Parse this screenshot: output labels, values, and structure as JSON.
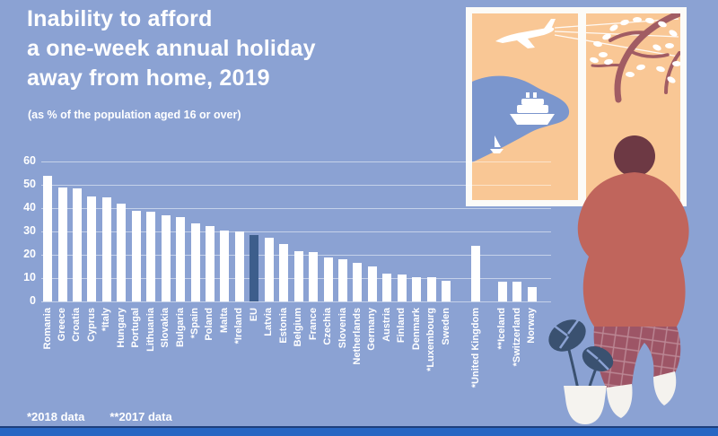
{
  "title": {
    "line1": "Inability to afford",
    "line2": "a one-week annual holiday",
    "line3": "away from home, 2019",
    "subtitle": "(as % of the population aged 16 or over)"
  },
  "footnote": {
    "note1": "*2018 data",
    "note2": "**2017 data"
  },
  "chart_data": {
    "type": "bar",
    "title": "Inability to afford a one-week annual holiday away from home, 2019",
    "ylabel": "% of the population aged 16 or over",
    "ylim": [
      0,
      60
    ],
    "yticks": [
      0,
      10,
      20,
      30,
      40,
      50,
      60
    ],
    "grid": true,
    "legend_position": "none",
    "categories": [
      "Romania",
      "Greece",
      "Croatia",
      "Cyprus",
      "*Italy",
      "Hungary",
      "Portugal",
      "Lithuania",
      "Slovakia",
      "Bulgaria",
      "*Spain",
      "Poland",
      "Malta",
      "*Ireland",
      "EU",
      "Latvia",
      "Estonia",
      "Belgium",
      "France",
      "Czechia",
      "Slovenia",
      "Netherlands",
      "Germany",
      "Austria",
      "Finland",
      "Denmark",
      "*Luxembourg",
      "Sweden",
      "*United Kingdom",
      "**Iceland",
      "*Switzerland",
      "Norway"
    ],
    "values": [
      54,
      49,
      48.5,
      45,
      44.5,
      42,
      39,
      38.5,
      37,
      36,
      33.5,
      32.5,
      30.5,
      30,
      28.5,
      27.5,
      24.5,
      21.5,
      21,
      19,
      18,
      16.5,
      15,
      12,
      11.5,
      10.5,
      10.5,
      9,
      24,
      8.5,
      8.5,
      6
    ],
    "groups": [
      "eu",
      "eu",
      "eu",
      "eu",
      "eu",
      "eu",
      "eu",
      "eu",
      "eu",
      "eu",
      "eu",
      "eu",
      "eu",
      "eu",
      "eu",
      "eu",
      "eu",
      "eu",
      "eu",
      "eu",
      "eu",
      "eu",
      "eu",
      "eu",
      "eu",
      "eu",
      "eu",
      "eu",
      "uk",
      "efta",
      "efta",
      "efta"
    ],
    "highlight_category": "EU"
  },
  "colors": {
    "background": "#8ba2d3",
    "bar": "#ffffff",
    "eu_bar": "#3d5e8c",
    "bottom_bar": "#2766c3",
    "window_sky": "#f9c795",
    "lake": "#7b96cd",
    "tree_branch": "#a15c63",
    "woman_top": "#c0655c",
    "woman_hair": "#6d3944",
    "woman_pants": "#9d5566",
    "plant_leaf": "#3a5170"
  },
  "illustration": {
    "icons": [
      "airplane-icon",
      "contrail-lines",
      "lake-shape",
      "cruise-ship-icon",
      "sailboat-icon",
      "tree-branch",
      "woman-looking-out-window",
      "potted-plant",
      "window-illustration"
    ]
  }
}
